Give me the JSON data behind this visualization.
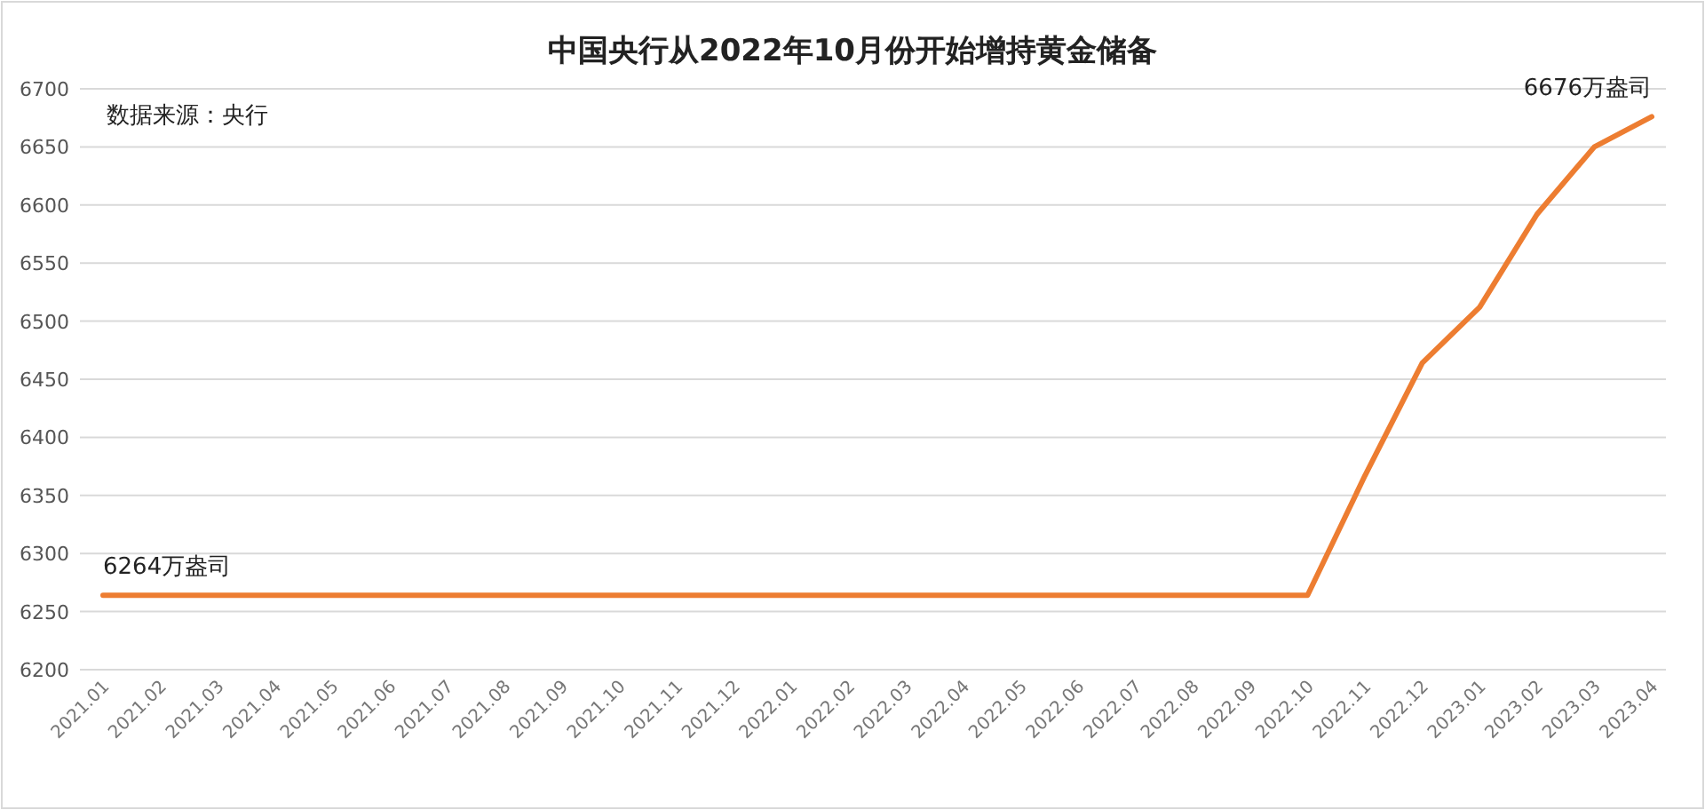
{
  "chart_data": {
    "type": "line",
    "title": "中国央行从2022年10月份开始增持黄金储备",
    "categories": [
      "2021.01",
      "2021.02",
      "2021.03",
      "2021.04",
      "2021.05",
      "2021.06",
      "2021.07",
      "2021.08",
      "2021.09",
      "2021.10",
      "2021.11",
      "2021.12",
      "2022.01",
      "2022.02",
      "2022.03",
      "2022.04",
      "2022.05",
      "2022.06",
      "2022.07",
      "2022.08",
      "2022.09",
      "2022.10",
      "2022.11",
      "2022.12",
      "2023.01",
      "2023.02",
      "2023.03",
      "2023.04"
    ],
    "series": [
      {
        "color": "#ed7d31",
        "values": [
          6264,
          6264,
          6264,
          6264,
          6264,
          6264,
          6264,
          6264,
          6264,
          6264,
          6264,
          6264,
          6264,
          6264,
          6264,
          6264,
          6264,
          6264,
          6264,
          6264,
          6264,
          6264,
          6367,
          6464,
          6512,
          6592,
          6650,
          6676
        ]
      }
    ],
    "ylim": [
      6200,
      6700
    ],
    "yticks": [
      6200,
      6250,
      6300,
      6350,
      6400,
      6450,
      6500,
      6550,
      6600,
      6650,
      6700
    ],
    "grid": "y",
    "annotations": [
      "数据来源：央行",
      {
        "text": "6264万盎司",
        "x": "2021.01",
        "y": 6264
      },
      {
        "text": "6676万盎司",
        "x": "2023.04",
        "y": 6676
      }
    ]
  }
}
